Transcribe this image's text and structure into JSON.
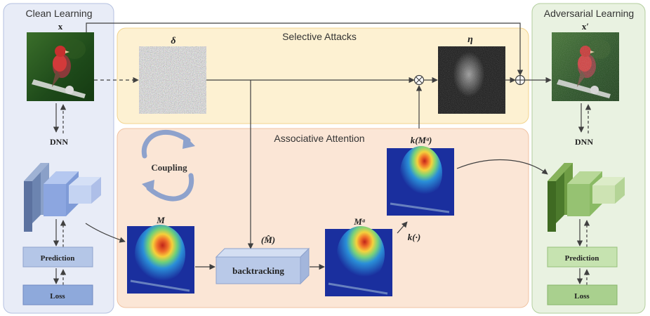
{
  "panels": {
    "clean_learning": "Clean Learning",
    "adversarial_learning": "Adversarial Learning",
    "selective_attacks": "Selective Attacks",
    "associative_attention": "Associative Attention"
  },
  "labels": {
    "x": "x",
    "x_prime": "x′",
    "delta": "δ",
    "eta": "η",
    "dnn_left": "DNN",
    "dnn_right": "DNN",
    "prediction_left": "Prediction",
    "prediction_right": "Prediction",
    "loss_left": "Loss",
    "loss_right": "Loss",
    "coupling": "Coupling",
    "m": "M",
    "m_hat": "(M̂)",
    "m_a": "Mᵃ",
    "k_m_a": "k(Mᵃ)",
    "k_dot": "k(·)",
    "backtracking": "backtracking"
  },
  "colors": {
    "clean_panel": "#e8ecf7",
    "adversarial_panel": "#e9f2e1",
    "selective_panel": "#fdf1d2",
    "attention_panel": "#fbe6d6",
    "blue_box": "#b4c6e7",
    "green_box": "#b9dba0"
  }
}
